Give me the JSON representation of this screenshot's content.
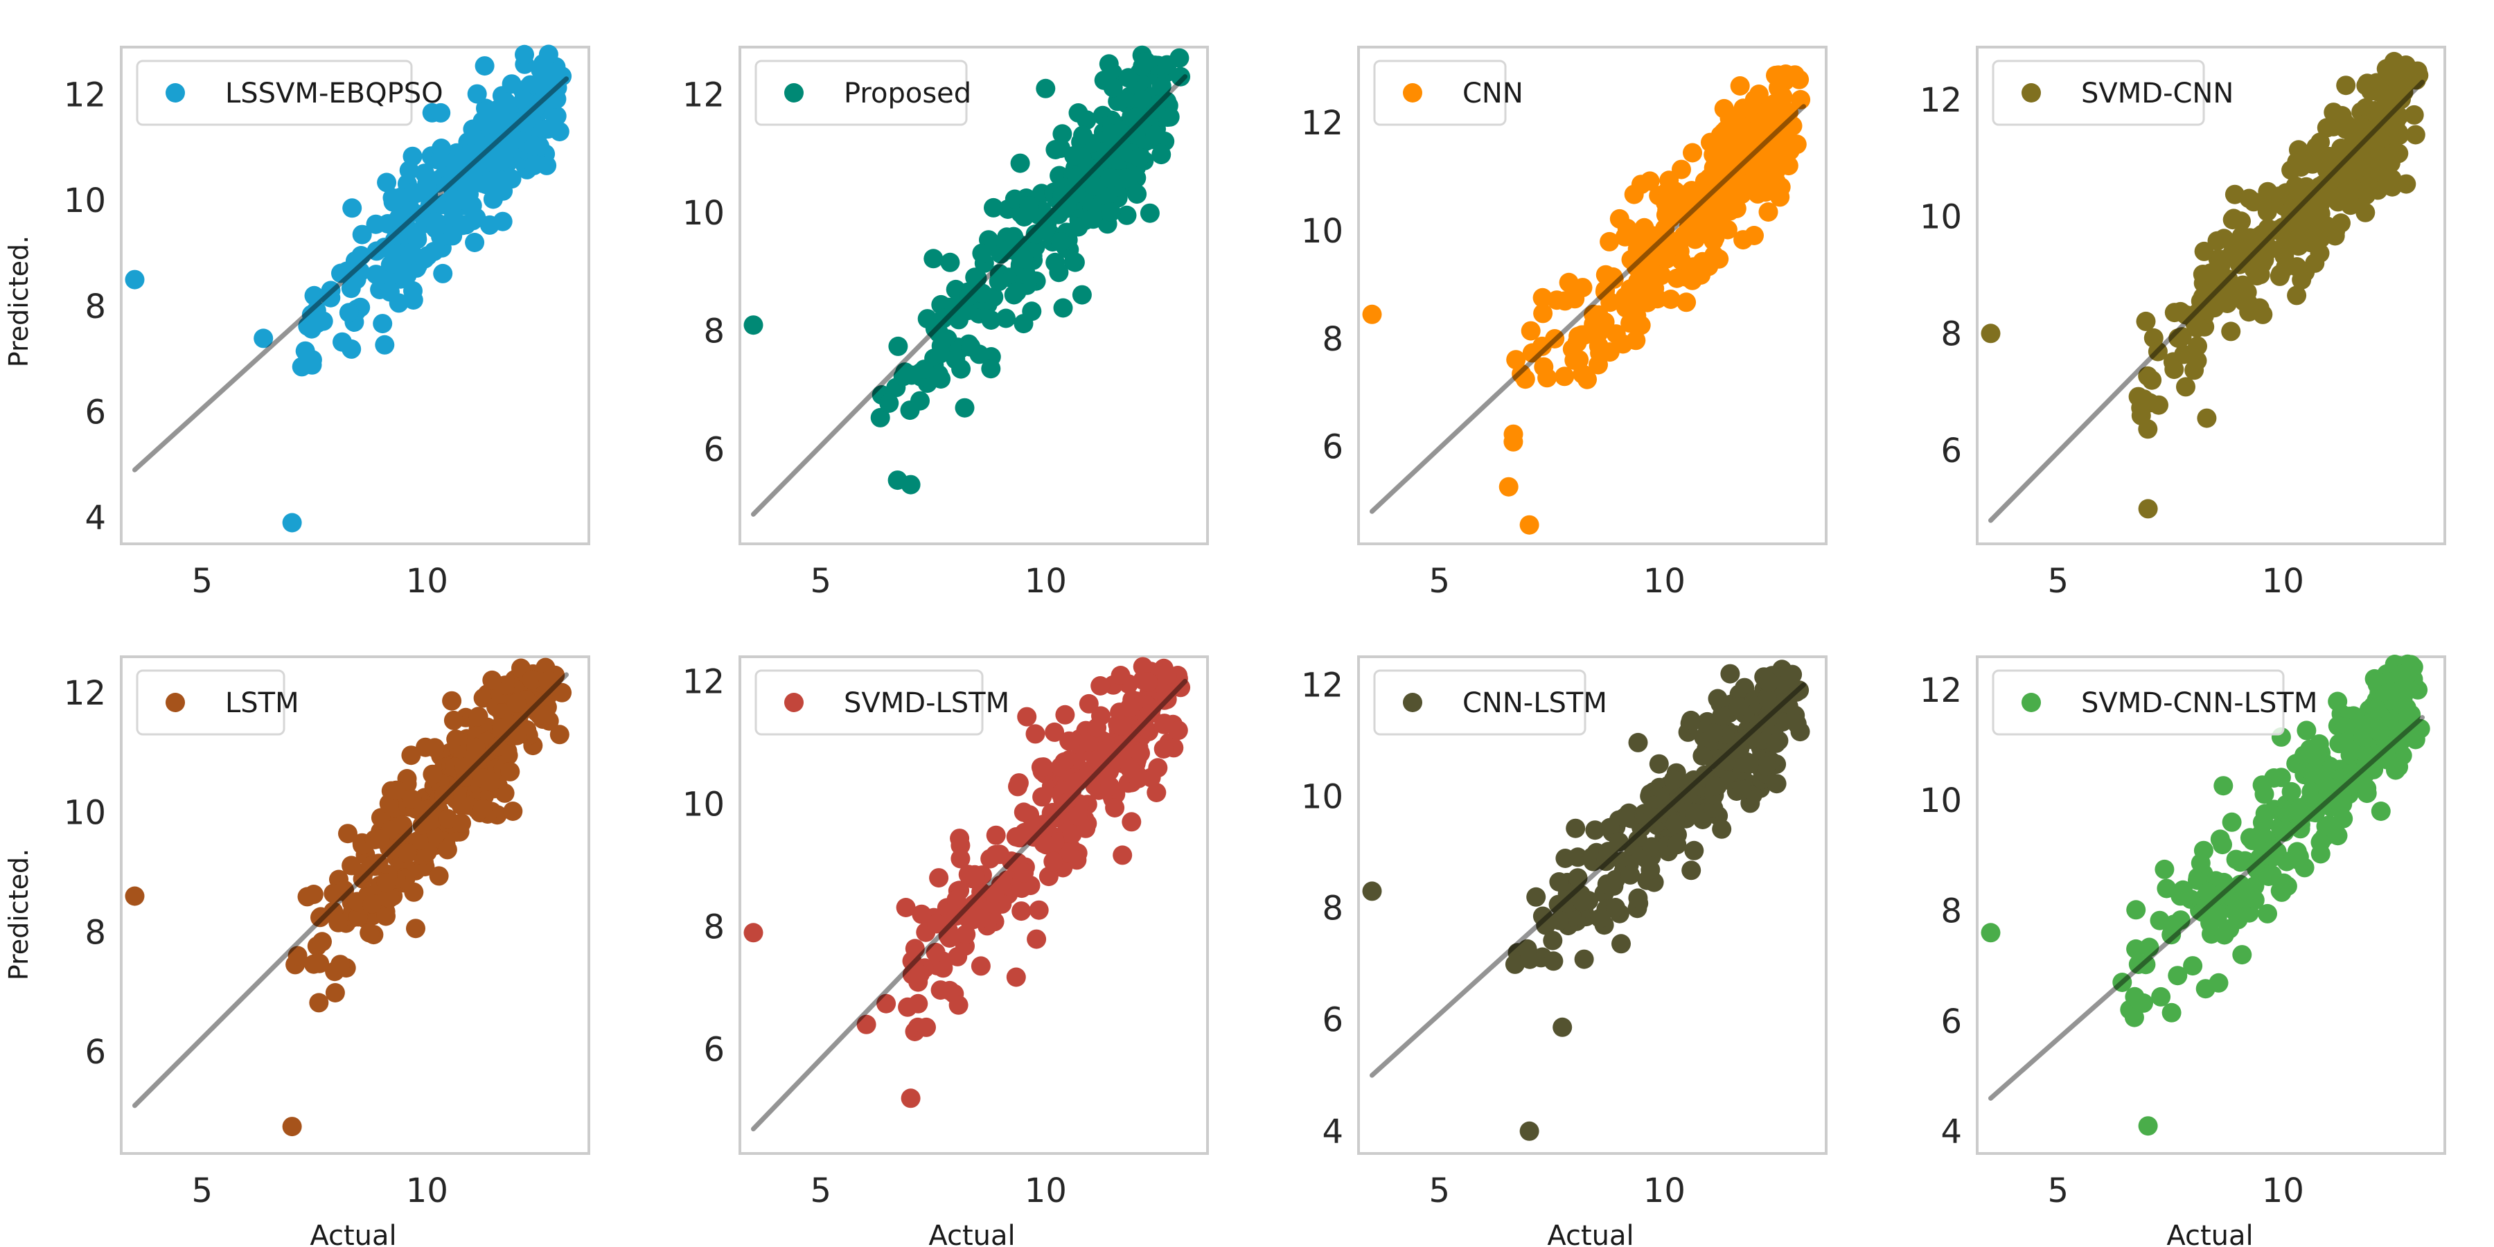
{
  "figure": {
    "ylabel": "Predicted.",
    "xlabel": "Actual"
  },
  "chart_data": [
    {
      "type": "scatter",
      "series": [
        {
          "name": "LSSVM-EBQPSO",
          "color": "#1aa0d1"
        }
      ],
      "xlim": [
        3.2,
        13.6
      ],
      "ylim": [
        3.5,
        12.9
      ],
      "xticks": [
        5,
        10
      ],
      "yticks": [
        4,
        6,
        8,
        10,
        12
      ],
      "ref_line": [
        [
          3.5,
          4.9
        ],
        [
          13.1,
          12.3
        ]
      ],
      "outliers": [
        [
          3.5,
          8.5
        ],
        [
          7.0,
          3.9
        ],
        [
          12.7,
          12.4
        ],
        [
          13.0,
          12.35
        ],
        [
          12.95,
          11.3
        ]
      ],
      "y_offset": 0.0,
      "seed": 11
    },
    {
      "type": "scatter",
      "series": [
        {
          "name": "Proposed",
          "color": "#008975"
        }
      ],
      "xlim": [
        3.2,
        13.6
      ],
      "ylim": [
        4.4,
        12.8
      ],
      "xticks": [
        5,
        10
      ],
      "yticks": [
        6,
        8,
        10,
        12
      ],
      "ref_line": [
        [
          3.5,
          4.9
        ],
        [
          13.1,
          12.3
        ]
      ],
      "outliers": [
        [
          3.5,
          8.1
        ],
        [
          7.0,
          5.4
        ],
        [
          12.7,
          12.5
        ],
        [
          13.0,
          12.3
        ],
        [
          10.0,
          12.1
        ]
      ],
      "y_offset": 0.0,
      "seed": 23
    },
    {
      "type": "scatter",
      "series": [
        {
          "name": "CNN",
          "color": "#ff8c00"
        }
      ],
      "xlim": [
        3.2,
        13.6
      ],
      "ylim": [
        4.2,
        13.4
      ],
      "xticks": [
        5,
        10
      ],
      "yticks": [
        6,
        8,
        10,
        12
      ],
      "ref_line": [
        [
          3.5,
          4.8
        ],
        [
          13.1,
          12.3
        ]
      ],
      "outliers": [
        [
          3.5,
          8.45
        ],
        [
          7.0,
          4.55
        ],
        [
          12.7,
          12.9
        ],
        [
          13.0,
          12.8
        ],
        [
          12.95,
          11.6
        ]
      ],
      "y_offset": 0.0,
      "seed": 37
    },
    {
      "type": "scatter",
      "series": [
        {
          "name": "SVMD-CNN",
          "color": "#807020"
        }
      ],
      "xlim": [
        3.2,
        13.6
      ],
      "ylim": [
        4.4,
        12.9
      ],
      "xticks": [
        5,
        10
      ],
      "yticks": [
        6,
        8,
        10,
        12
      ],
      "ref_line": [
        [
          3.5,
          4.8
        ],
        [
          13.1,
          12.3
        ]
      ],
      "outliers": [
        [
          3.5,
          8.0
        ],
        [
          7.0,
          5.0
        ],
        [
          12.7,
          12.5
        ],
        [
          13.0,
          12.4
        ],
        [
          12.95,
          11.4
        ]
      ],
      "y_offset": 0.0,
      "seed": 41
    },
    {
      "type": "scatter",
      "series": [
        {
          "name": "LSTM",
          "color": "#a6531b"
        }
      ],
      "xlim": [
        3.2,
        13.6
      ],
      "ylim": [
        4.3,
        12.6
      ],
      "xticks": [
        5,
        10
      ],
      "yticks": [
        6,
        8,
        10,
        12
      ],
      "ref_line": [
        [
          3.5,
          5.1
        ],
        [
          13.1,
          12.3
        ]
      ],
      "outliers": [
        [
          3.5,
          8.6
        ],
        [
          7.0,
          4.75
        ],
        [
          12.7,
          12.2
        ],
        [
          13.0,
          12.0
        ],
        [
          12.95,
          11.3
        ]
      ],
      "y_offset": 0.15,
      "seed": 53
    },
    {
      "type": "scatter",
      "series": [
        {
          "name": "SVMD-LSTM",
          "color": "#c2463b"
        }
      ],
      "xlim": [
        3.2,
        13.6
      ],
      "ylim": [
        4.3,
        12.4
      ],
      "xticks": [
        5,
        10
      ],
      "yticks": [
        6,
        8,
        10,
        12
      ],
      "ref_line": [
        [
          3.5,
          4.7
        ],
        [
          13.1,
          12.0
        ]
      ],
      "outliers": [
        [
          3.5,
          7.9
        ],
        [
          7.0,
          5.2
        ],
        [
          12.7,
          12.1
        ],
        [
          13.0,
          11.9
        ],
        [
          12.95,
          11.2
        ]
      ],
      "y_offset": -0.1,
      "seed": 67
    },
    {
      "type": "scatter",
      "series": [
        {
          "name": "CNN-LSTM",
          "color": "#545330"
        }
      ],
      "xlim": [
        3.2,
        13.6
      ],
      "ylim": [
        3.6,
        12.5
      ],
      "xticks": [
        5,
        10
      ],
      "yticks": [
        4,
        6,
        8,
        10,
        12
      ],
      "ref_line": [
        [
          3.5,
          5.0
        ],
        [
          13.1,
          12.0
        ]
      ],
      "outliers": [
        [
          3.5,
          8.3
        ],
        [
          7.0,
          4.0
        ],
        [
          12.7,
          12.0
        ],
        [
          13.0,
          11.9
        ],
        [
          12.95,
          11.3
        ]
      ],
      "y_offset": -0.1,
      "seed": 79
    },
    {
      "type": "scatter",
      "series": [
        {
          "name": "SVMD-CNN-LSTM",
          "color": "#4aad4a"
        }
      ],
      "xlim": [
        3.2,
        13.6
      ],
      "ylim": [
        3.6,
        12.6
      ],
      "xticks": [
        5,
        10
      ],
      "yticks": [
        4,
        6,
        8,
        10,
        12
      ],
      "ref_line": [
        [
          3.5,
          4.6
        ],
        [
          13.1,
          11.5
        ]
      ],
      "outliers": [
        [
          3.5,
          7.6
        ],
        [
          7.0,
          4.1
        ],
        [
          12.7,
          12.1
        ],
        [
          13.0,
          12.0
        ],
        [
          12.95,
          11.1
        ]
      ],
      "y_offset": -0.3,
      "seed": 97
    }
  ]
}
